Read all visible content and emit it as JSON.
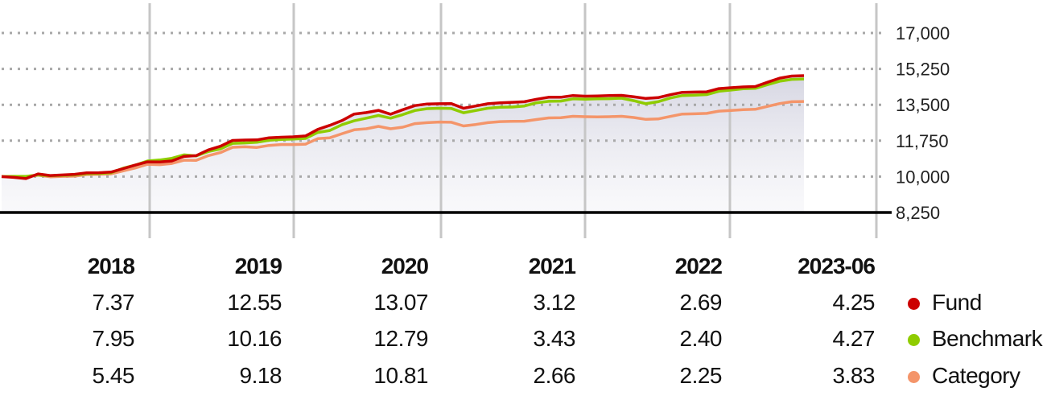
{
  "chart_data": {
    "type": "line",
    "y_ticks": [
      "17,000",
      "15,250",
      "13,500",
      "11,750",
      "10,000",
      "8,250"
    ],
    "y_tick_values": [
      17000,
      15250,
      13500,
      11750,
      10000,
      8250
    ],
    "ylim": [
      8250,
      17000
    ],
    "x_range": [
      "2017-06",
      "2023-06"
    ],
    "year_boundaries": [
      "2018-01",
      "2019-01",
      "2020-01",
      "2021-01",
      "2022-01",
      "2023-01"
    ],
    "grid": true,
    "area_fill_series": "Fund",
    "series": [
      {
        "name": "Fund",
        "color": "#cc0000",
        "values": [
          10000,
          9960,
          9900,
          10130,
          10050,
          10080,
          10110,
          10180,
          10190,
          10220,
          10390,
          10560,
          10720,
          10710,
          10760,
          10980,
          11020,
          11300,
          11480,
          11760,
          11780,
          11790,
          11890,
          11920,
          11940,
          11980,
          12300,
          12500,
          12730,
          13050,
          13120,
          13230,
          13040,
          13260,
          13460,
          13540,
          13550,
          13560,
          13330,
          13440,
          13550,
          13600,
          13620,
          13650,
          13770,
          13870,
          13870,
          13950,
          13920,
          13930,
          13950,
          13960,
          13890,
          13810,
          13850,
          13990,
          14110,
          14120,
          14130,
          14290,
          14330,
          14370,
          14390,
          14600,
          14800,
          14900,
          14920
        ]
      },
      {
        "name": "Benchmark",
        "color": "#8fcc00",
        "values": [
          10000,
          10010,
          10010,
          10080,
          10040,
          10060,
          10080,
          10140,
          10150,
          10190,
          10410,
          10560,
          10760,
          10810,
          10890,
          11060,
          11010,
          11220,
          11350,
          11620,
          11640,
          11670,
          11770,
          11810,
          11830,
          11860,
          12150,
          12250,
          12530,
          12720,
          12850,
          12980,
          12850,
          13020,
          13220,
          13310,
          13330,
          13320,
          13110,
          13220,
          13330,
          13380,
          13390,
          13440,
          13600,
          13670,
          13680,
          13790,
          13770,
          13790,
          13800,
          13820,
          13700,
          13550,
          13650,
          13830,
          13950,
          13970,
          14000,
          14160,
          14220,
          14280,
          14300,
          14480,
          14650,
          14740,
          14760
        ]
      },
      {
        "name": "Category",
        "color": "#f4956a",
        "values": [
          10000,
          9990,
          9980,
          10070,
          9990,
          10010,
          10020,
          10100,
          10110,
          10130,
          10280,
          10420,
          10600,
          10580,
          10640,
          10800,
          10790,
          11020,
          11170,
          11430,
          11450,
          11420,
          11520,
          11560,
          11560,
          11580,
          11850,
          11890,
          12090,
          12280,
          12330,
          12450,
          12330,
          12410,
          12580,
          12630,
          12660,
          12650,
          12470,
          12540,
          12630,
          12680,
          12690,
          12700,
          12780,
          12860,
          12870,
          12940,
          12920,
          12910,
          12920,
          12940,
          12880,
          12790,
          12810,
          12930,
          13050,
          13060,
          13080,
          13190,
          13220,
          13260,
          13280,
          13420,
          13560,
          13650,
          13660
        ]
      }
    ]
  },
  "table": {
    "years": [
      "2018",
      "2019",
      "2020",
      "2021",
      "2022",
      "2023-06"
    ],
    "rows": [
      {
        "name": "Fund",
        "values": [
          "7.37",
          "12.55",
          "13.07",
          "3.12",
          "2.69",
          "4.25"
        ]
      },
      {
        "name": "Benchmark",
        "values": [
          "7.95",
          "10.16",
          "12.79",
          "3.43",
          "2.40",
          "4.27"
        ]
      },
      {
        "name": "Category",
        "values": [
          "5.45",
          "9.18",
          "10.81",
          "2.66",
          "2.25",
          "3.83"
        ]
      }
    ]
  },
  "legend": [
    {
      "label": "Fund",
      "color": "#cc0000"
    },
    {
      "label": "Benchmark",
      "color": "#8fcc00"
    },
    {
      "label": "Category",
      "color": "#f4956a"
    }
  ]
}
